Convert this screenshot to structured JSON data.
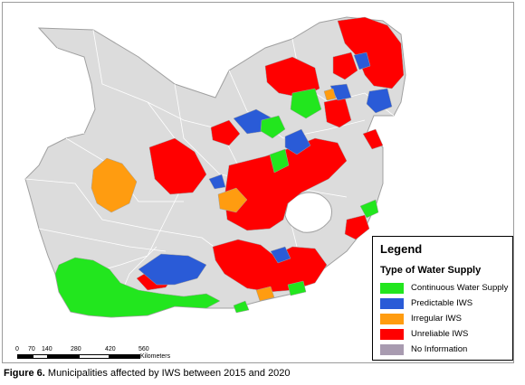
{
  "legend": {
    "title": "Legend",
    "subtitle": "Type of Water Supply",
    "items": [
      {
        "label": "Continuous Water Supply",
        "color": "#22e61e"
      },
      {
        "label": "Predictable IWS",
        "color": "#2a5bd7"
      },
      {
        "label": "Irregular IWS",
        "color": "#ff9c10"
      },
      {
        "label": "Unreliable IWS",
        "color": "#ff0000"
      },
      {
        "label": "No Information",
        "color": "#a89bb0"
      }
    ]
  },
  "map_colors": {
    "land": "#dcdcdc",
    "border": "#a0a0a0",
    "lesotho": "#ffffff"
  },
  "scalebar": {
    "ticks": [
      "0",
      "70",
      "140",
      "280",
      "420",
      "560"
    ],
    "unit": "Kilometers"
  },
  "caption": {
    "label": "Figure 6.",
    "text": " Municipalities affected by IWS between 2015 and 2020"
  }
}
